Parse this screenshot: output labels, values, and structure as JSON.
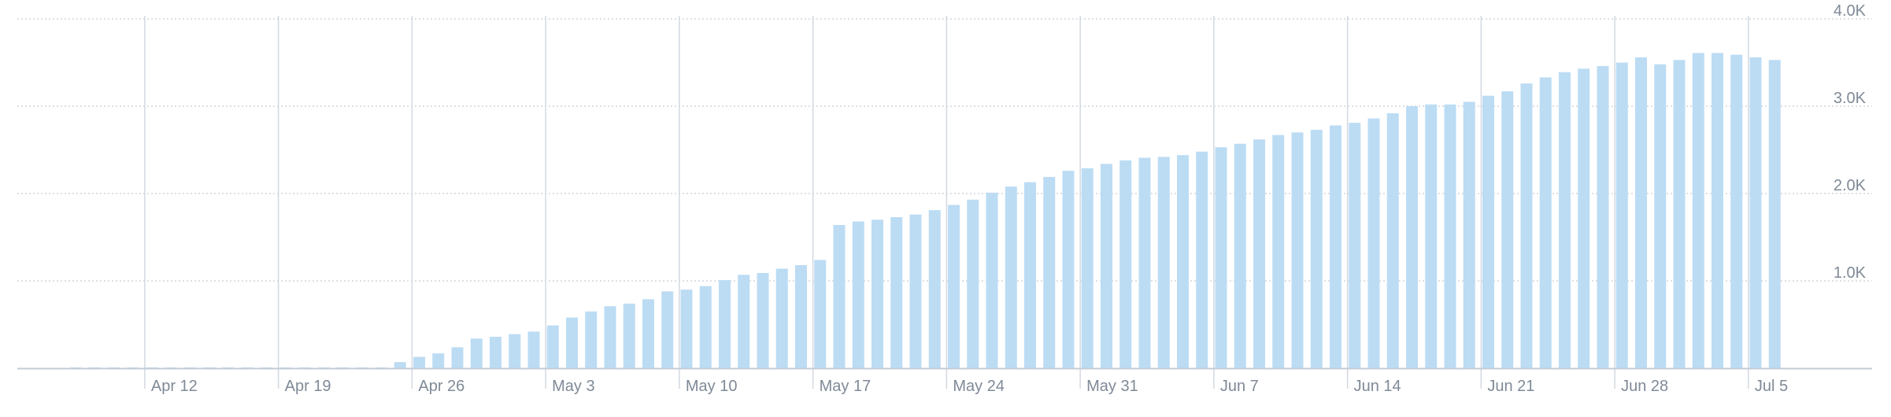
{
  "chart_data": {
    "type": "bar",
    "title": "",
    "xlabel": "",
    "ylabel": "",
    "x_start": "Apr 8",
    "x_end": "Jul 9",
    "x_ticks": [
      "Apr 12",
      "Apr 19",
      "Apr 26",
      "May 3",
      "May 10",
      "May 17",
      "May 24",
      "May 31",
      "Jun 7",
      "Jun 14",
      "Jun 21",
      "Jun 28",
      "Jul 5"
    ],
    "y_ticks": [
      {
        "value": 1000,
        "label": "1.0K"
      },
      {
        "value": 2000,
        "label": "2.0K"
      },
      {
        "value": 3000,
        "label": "3.0K"
      },
      {
        "value": 4000,
        "label": "4.0K"
      }
    ],
    "ylim": [
      0,
      4000
    ],
    "grid": true,
    "bar_color": "#bcdcf4",
    "series": [
      {
        "values": [
          5,
          5,
          5,
          5,
          5,
          5,
          5,
          5,
          5,
          5,
          5,
          5,
          5,
          5,
          5,
          5,
          5,
          70,
          130,
          170,
          240,
          340,
          360,
          390,
          420,
          490,
          580,
          650,
          710,
          740,
          790,
          880,
          900,
          940,
          1010,
          1070,
          1090,
          1140,
          1180,
          1240,
          1640,
          1680,
          1700,
          1730,
          1760,
          1810,
          1870,
          1930,
          2010,
          2080,
          2130,
          2190,
          2260,
          2290,
          2340,
          2380,
          2410,
          2420,
          2440,
          2480,
          2530,
          2570,
          2620,
          2670,
          2700,
          2730,
          2780,
          2810,
          2860,
          2920,
          3000,
          3020,
          3020,
          3050,
          3120,
          3170,
          3260,
          3330,
          3390,
          3430,
          3460,
          3500,
          3560,
          3480,
          3530,
          3610,
          3610,
          3590,
          3560,
          3530
        ]
      }
    ]
  }
}
